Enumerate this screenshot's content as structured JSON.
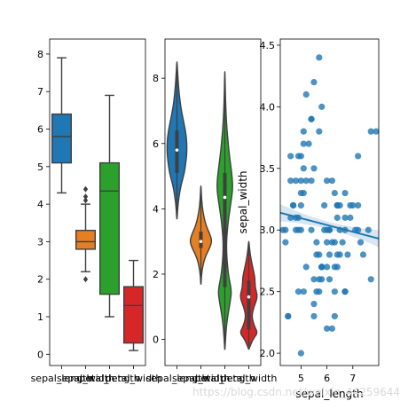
{
  "watermark": "https://blog.csdn.net/weixin_44259644",
  "chart_data": [
    {
      "type": "box",
      "categories": [
        "sepal_length",
        "sepal_width",
        "petal_length",
        "petal_width"
      ],
      "colors": [
        "#1f77b4",
        "#e67e22",
        "#2ca02c",
        "#d62728"
      ],
      "boxes": [
        {
          "whislo": 4.3,
          "q1": 5.1,
          "med": 5.8,
          "q3": 6.4,
          "whishi": 7.9,
          "fliers": []
        },
        {
          "whislo": 2.2,
          "q1": 2.8,
          "med": 3.0,
          "q3": 3.3,
          "whishi": 4.0,
          "fliers": [
            4.1,
            4.2,
            4.4,
            2.0
          ]
        },
        {
          "whislo": 1.0,
          "q1": 1.6,
          "med": 4.35,
          "q3": 5.1,
          "whishi": 6.9,
          "fliers": []
        },
        {
          "whislo": 0.1,
          "q1": 0.3,
          "med": 1.3,
          "q3": 1.8,
          "whishi": 2.5,
          "fliers": []
        }
      ],
      "ylim": [
        -0.3,
        8.4
      ],
      "yticks": [
        0,
        1,
        2,
        3,
        4,
        5,
        6,
        7,
        8
      ]
    },
    {
      "type": "violin",
      "categories": [
        "sepal_length",
        "sepal_width",
        "petal_length",
        "petal_width"
      ],
      "colors": [
        "#1f77b4",
        "#e67e22",
        "#2ca02c",
        "#d62728"
      ],
      "violins": [
        {
          "min": 3.7,
          "max": 8.5,
          "q1": 5.1,
          "med": 5.8,
          "q3": 6.4,
          "width": 0.62,
          "profile": [
            [
              3.7,
              0.01
            ],
            [
              4.2,
              0.12
            ],
            [
              4.7,
              0.38
            ],
            [
              5.1,
              0.75
            ],
            [
              5.5,
              0.92
            ],
            [
              5.8,
              1.0
            ],
            [
              6.2,
              0.95
            ],
            [
              6.6,
              0.72
            ],
            [
              7.1,
              0.38
            ],
            [
              7.6,
              0.2
            ],
            [
              8.0,
              0.1
            ],
            [
              8.5,
              0.01
            ]
          ]
        },
        {
          "min": 1.7,
          "max": 4.7,
          "q1": 2.8,
          "med": 3.0,
          "q3": 3.3,
          "width": 0.68,
          "profile": [
            [
              1.7,
              0.01
            ],
            [
              2.1,
              0.08
            ],
            [
              2.5,
              0.35
            ],
            [
              2.8,
              0.8
            ],
            [
              3.0,
              1.0
            ],
            [
              3.2,
              0.85
            ],
            [
              3.5,
              0.45
            ],
            [
              3.9,
              0.18
            ],
            [
              4.3,
              0.06
            ],
            [
              4.7,
              0.01
            ]
          ]
        },
        {
          "min": -0.3,
          "max": 8.2,
          "q1": 1.6,
          "med": 4.35,
          "q3": 5.1,
          "width": 0.58,
          "profile": [
            [
              -0.3,
              0.01
            ],
            [
              0.5,
              0.18
            ],
            [
              1.2,
              0.6
            ],
            [
              1.5,
              0.72
            ],
            [
              2.0,
              0.35
            ],
            [
              2.8,
              0.14
            ],
            [
              3.5,
              0.3
            ],
            [
              4.2,
              0.65
            ],
            [
              4.6,
              0.85
            ],
            [
              5.0,
              0.78
            ],
            [
              5.6,
              0.5
            ],
            [
              6.4,
              0.22
            ],
            [
              7.2,
              0.08
            ],
            [
              8.2,
              0.01
            ]
          ]
        },
        {
          "min": -0.3,
          "max": 3.0,
          "q1": 0.3,
          "med": 1.3,
          "q3": 1.8,
          "width": 0.7,
          "profile": [
            [
              -0.3,
              0.01
            ],
            [
              0.0,
              0.35
            ],
            [
              0.2,
              0.8
            ],
            [
              0.4,
              0.5
            ],
            [
              0.7,
              0.25
            ],
            [
              1.0,
              0.45
            ],
            [
              1.3,
              0.8
            ],
            [
              1.6,
              0.55
            ],
            [
              1.9,
              0.55
            ],
            [
              2.2,
              0.35
            ],
            [
              2.6,
              0.12
            ],
            [
              3.0,
              0.01
            ]
          ]
        }
      ],
      "ylim": [
        -0.8,
        9.2
      ],
      "yticks": [
        0,
        2,
        4,
        6,
        8
      ]
    },
    {
      "type": "scatter",
      "xlabel": "sepal_length",
      "ylabel": "sepal_width",
      "xlim": [
        4.2,
        8.0
      ],
      "ylim": [
        1.9,
        4.55
      ],
      "xticks": [
        5,
        6,
        7
      ],
      "yticks": [
        2.0,
        2.5,
        3.0,
        3.5,
        4.0,
        4.5
      ],
      "color": "#1f77b4",
      "regression": {
        "x0": 4.2,
        "y0": 3.14,
        "x1": 8.0,
        "y1": 2.93,
        "ci_halfwidth_ends": 0.07,
        "ci_halfwidth_mid": 0.03
      },
      "x": [
        4.4,
        4.5,
        4.6,
        4.6,
        4.7,
        4.8,
        4.8,
        4.9,
        4.9,
        4.9,
        5.0,
        5.0,
        5.0,
        5.0,
        5.1,
        5.1,
        5.1,
        5.1,
        5.2,
        5.2,
        5.3,
        5.4,
        5.4,
        5.4,
        5.5,
        5.5,
        5.5,
        5.5,
        5.6,
        5.7,
        5.7,
        5.7,
        5.8,
        5.8,
        5.8,
        5.9,
        6.0,
        6.0,
        6.0,
        6.1,
        6.1,
        6.1,
        6.2,
        6.2,
        6.3,
        6.3,
        6.3,
        6.4,
        6.4,
        6.4,
        6.5,
        6.5,
        6.6,
        6.7,
        6.7,
        6.7,
        6.8,
        6.9,
        7.0,
        7.1,
        7.2,
        7.2,
        7.3,
        7.4,
        7.6,
        7.7,
        7.7,
        7.9,
        4.3,
        4.4,
        4.5,
        4.6,
        4.8,
        4.9,
        5.0,
        5.1,
        5.2,
        5.5,
        5.6,
        5.7,
        5.8,
        5.9,
        6.0,
        6.1,
        6.2,
        6.3,
        6.4,
        6.5,
        6.7,
        6.9,
        7.2,
        4.7,
        5.0,
        5.4,
        5.7,
        6.3,
        5.6,
        5.8,
        6.0,
        6.4,
        6.7
      ],
      "y": [
        3.0,
        2.3,
        3.1,
        3.6,
        3.2,
        3.0,
        3.4,
        3.0,
        3.1,
        2.5,
        3.6,
        3.4,
        2.0,
        3.0,
        3.5,
        3.8,
        3.3,
        2.5,
        3.4,
        4.1,
        3.7,
        3.9,
        3.4,
        3.0,
        4.2,
        3.5,
        2.6,
        2.4,
        2.9,
        4.4,
        3.8,
        2.8,
        4.0,
        2.7,
        2.7,
        3.0,
        2.2,
        3.4,
        2.7,
        2.8,
        3.0,
        2.6,
        2.9,
        3.4,
        3.3,
        2.5,
        2.3,
        3.2,
        2.8,
        3.1,
        3.0,
        2.8,
        2.9,
        3.1,
        3.0,
        2.5,
        2.8,
        3.1,
        3.2,
        3.0,
        3.6,
        3.2,
        2.9,
        2.8,
        3.0,
        3.8,
        2.6,
        3.8,
        3.0,
        2.9,
        2.3,
        3.4,
        3.1,
        3.6,
        3.2,
        3.7,
        2.7,
        2.3,
        2.5,
        2.6,
        2.6,
        3.2,
        2.9,
        3.0,
        2.2,
        2.7,
        2.7,
        3.2,
        3.3,
        3.2,
        3.0,
        3.2,
        3.3,
        3.9,
        2.5,
        2.9,
        2.8,
        2.7,
        3.0,
        3.2,
        2.5
      ]
    }
  ]
}
